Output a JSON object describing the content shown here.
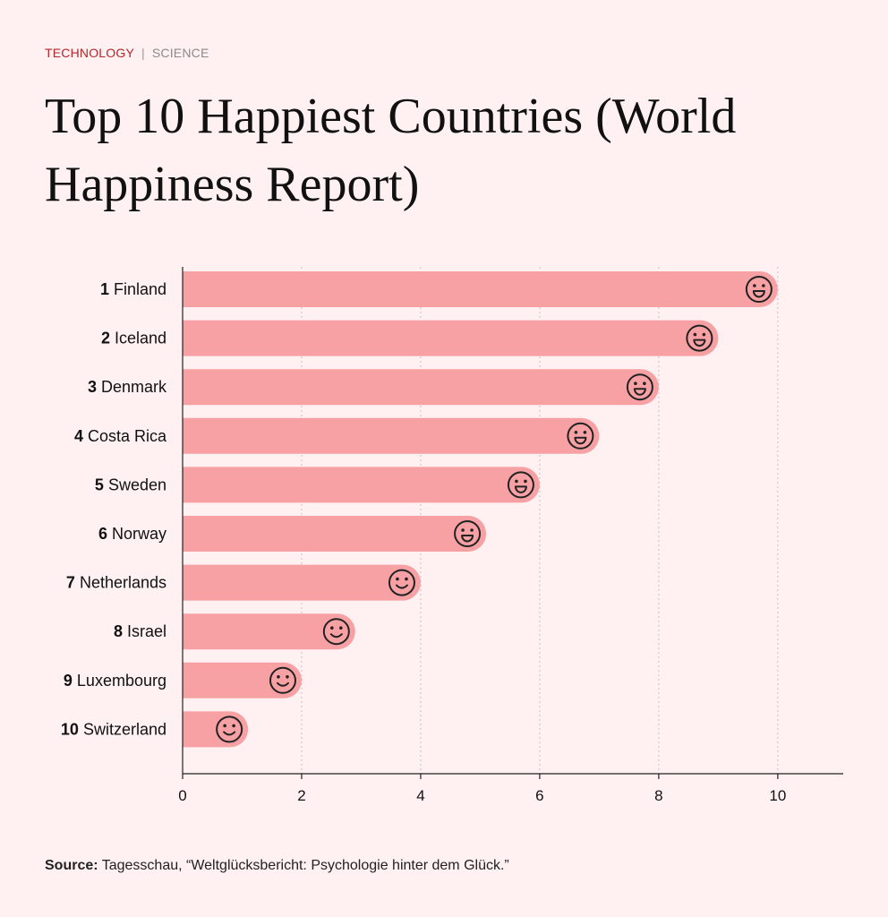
{
  "header": {
    "category_primary": "TECHNOLOGY",
    "separator": "|",
    "category_secondary": "SCIENCE",
    "title": "Top 10 Happiest Countries (World Happiness Report)"
  },
  "chart_data": {
    "type": "bar",
    "orientation": "horizontal",
    "title": "Top 10 Happiest Countries (World Happiness Report)",
    "xlabel": "",
    "ylabel": "",
    "xlim": [
      0,
      11.1
    ],
    "x_ticks": [
      0,
      2,
      4,
      6,
      8,
      10
    ],
    "grid": "vertical dotted",
    "bar_color": "#f7a1a5",
    "categories": [
      {
        "rank": "1",
        "name": "Finland",
        "face": "grin"
      },
      {
        "rank": "2",
        "name": "Iceland",
        "face": "grin"
      },
      {
        "rank": "3",
        "name": "Denmark",
        "face": "grin"
      },
      {
        "rank": "4",
        "name": "Costa Rica",
        "face": "grin"
      },
      {
        "rank": "5",
        "name": "Sweden",
        "face": "grin"
      },
      {
        "rank": "6",
        "name": "Norway",
        "face": "grin"
      },
      {
        "rank": "7",
        "name": "Netherlands",
        "face": "smile"
      },
      {
        "rank": "8",
        "name": "Israel",
        "face": "smile"
      },
      {
        "rank": "9",
        "name": "Luxembourg",
        "face": "smile"
      },
      {
        "rank": "10",
        "name": "Switzerland",
        "face": "smile"
      }
    ],
    "values": [
      10,
      9,
      8,
      7,
      6,
      5.1,
      4,
      2.9,
      2,
      1.1
    ]
  },
  "footer": {
    "source_label": "Source:",
    "source_text": " Tagesschau, “Weltglücksbericht: Psychologie hinter dem Glück.”"
  }
}
